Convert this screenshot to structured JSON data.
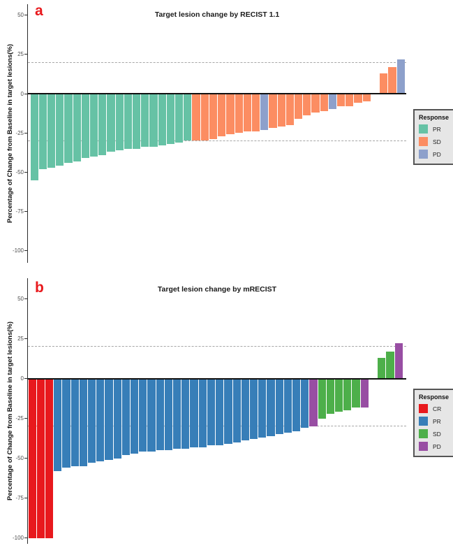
{
  "styles": {
    "panel_label_color": "#E8191D",
    "zero_line_color": "#111111",
    "dashed_line_color": "#A6A6A6",
    "axis_color": "#2B2B2B",
    "tick_label_color": "#4D4D4D",
    "legend_bg": "#E6E6E6",
    "legend_border": "#555555"
  },
  "chart_data": [
    {
      "type": "bar",
      "panel_label": "a",
      "title": "Target lesion change by RECIST 1.1",
      "ylabel": "Percentage of Change from Baseline in target lesions(%)",
      "ylim": [
        -107,
        57
      ],
      "yticks": [
        50,
        25,
        0,
        -25,
        -50,
        -75,
        -100
      ],
      "dashed_thresholds": [
        20,
        -30
      ],
      "grid": false,
      "legend": {
        "position": "right",
        "title": "Response",
        "items": [
          {
            "label": "PR",
            "color": "#66C2A5"
          },
          {
            "label": "SD",
            "color": "#FC8D62"
          },
          {
            "label": "PD",
            "color": "#8DA0CB"
          }
        ]
      },
      "colors": {
        "PR": "#66C2A5",
        "SD": "#FC8D62",
        "PD": "#8DA0CB"
      },
      "bars": [
        {
          "value": -55,
          "response": "PR"
        },
        {
          "value": -48,
          "response": "PR"
        },
        {
          "value": -47,
          "response": "PR"
        },
        {
          "value": -46,
          "response": "PR"
        },
        {
          "value": -44,
          "response": "PR"
        },
        {
          "value": -43,
          "response": "PR"
        },
        {
          "value": -41,
          "response": "PR"
        },
        {
          "value": -40,
          "response": "PR"
        },
        {
          "value": -39,
          "response": "PR"
        },
        {
          "value": -37,
          "response": "PR"
        },
        {
          "value": -36,
          "response": "PR"
        },
        {
          "value": -35,
          "response": "PR"
        },
        {
          "value": -35,
          "response": "PR"
        },
        {
          "value": -34,
          "response": "PR"
        },
        {
          "value": -34,
          "response": "PR"
        },
        {
          "value": -33,
          "response": "PR"
        },
        {
          "value": -32,
          "response": "PR"
        },
        {
          "value": -31,
          "response": "PR"
        },
        {
          "value": -30,
          "response": "PR"
        },
        {
          "value": -30,
          "response": "SD"
        },
        {
          "value": -30,
          "response": "SD"
        },
        {
          "value": -29,
          "response": "SD"
        },
        {
          "value": -27,
          "response": "SD"
        },
        {
          "value": -26,
          "response": "SD"
        },
        {
          "value": -25,
          "response": "SD"
        },
        {
          "value": -24,
          "response": "SD"
        },
        {
          "value": -24,
          "response": "SD"
        },
        {
          "value": -23,
          "response": "PD"
        },
        {
          "value": -22,
          "response": "SD"
        },
        {
          "value": -21,
          "response": "SD"
        },
        {
          "value": -20,
          "response": "SD"
        },
        {
          "value": -16,
          "response": "SD"
        },
        {
          "value": -14,
          "response": "SD"
        },
        {
          "value": -12,
          "response": "SD"
        },
        {
          "value": -11,
          "response": "SD"
        },
        {
          "value": -10,
          "response": "PD"
        },
        {
          "value": -8,
          "response": "SD"
        },
        {
          "value": -8,
          "response": "SD"
        },
        {
          "value": -6,
          "response": "SD"
        },
        {
          "value": -5,
          "response": "SD"
        },
        {
          "value": 0,
          "response": "SD"
        },
        {
          "value": 13,
          "response": "SD"
        },
        {
          "value": 17,
          "response": "SD"
        },
        {
          "value": 22,
          "response": "PD"
        }
      ]
    },
    {
      "type": "bar",
      "panel_label": "b",
      "title": "Target lesion change by mRECIST",
      "ylabel": "Percentage of Change from Baseline in target lesions(%)",
      "ylim": [
        -107,
        57
      ],
      "yticks": [
        50,
        25,
        0,
        -25,
        -50,
        -75,
        -100
      ],
      "dashed_thresholds": [
        20,
        -30
      ],
      "grid": false,
      "legend": {
        "position": "right",
        "title": "Response",
        "items": [
          {
            "label": "CR",
            "color": "#E8191D"
          },
          {
            "label": "PR",
            "color": "#377EB8"
          },
          {
            "label": "SD",
            "color": "#4DAF4A"
          },
          {
            "label": "PD",
            "color": "#984EA3"
          }
        ]
      },
      "colors": {
        "CR": "#E8191D",
        "PR": "#377EB8",
        "SD": "#4DAF4A",
        "PD": "#984EA3"
      },
      "bars": [
        {
          "value": -100,
          "response": "CR"
        },
        {
          "value": -100,
          "response": "CR"
        },
        {
          "value": -100,
          "response": "CR"
        },
        {
          "value": -58,
          "response": "PR"
        },
        {
          "value": -56,
          "response": "PR"
        },
        {
          "value": -55,
          "response": "PR"
        },
        {
          "value": -55,
          "response": "PR"
        },
        {
          "value": -53,
          "response": "PR"
        },
        {
          "value": -52,
          "response": "PR"
        },
        {
          "value": -51,
          "response": "PR"
        },
        {
          "value": -50,
          "response": "PR"
        },
        {
          "value": -48,
          "response": "PR"
        },
        {
          "value": -47,
          "response": "PR"
        },
        {
          "value": -46,
          "response": "PR"
        },
        {
          "value": -46,
          "response": "PR"
        },
        {
          "value": -45,
          "response": "PR"
        },
        {
          "value": -45,
          "response": "PR"
        },
        {
          "value": -44,
          "response": "PR"
        },
        {
          "value": -44,
          "response": "PR"
        },
        {
          "value": -43,
          "response": "PR"
        },
        {
          "value": -43,
          "response": "PR"
        },
        {
          "value": -42,
          "response": "PR"
        },
        {
          "value": -42,
          "response": "PR"
        },
        {
          "value": -41,
          "response": "PR"
        },
        {
          "value": -40,
          "response": "PR"
        },
        {
          "value": -39,
          "response": "PR"
        },
        {
          "value": -38,
          "response": "PR"
        },
        {
          "value": -37,
          "response": "PR"
        },
        {
          "value": -36,
          "response": "PR"
        },
        {
          "value": -35,
          "response": "PR"
        },
        {
          "value": -34,
          "response": "PR"
        },
        {
          "value": -33,
          "response": "PR"
        },
        {
          "value": -31,
          "response": "PR"
        },
        {
          "value": -30,
          "response": "PD"
        },
        {
          "value": -25,
          "response": "SD"
        },
        {
          "value": -22,
          "response": "SD"
        },
        {
          "value": -21,
          "response": "SD"
        },
        {
          "value": -20,
          "response": "SD"
        },
        {
          "value": -18,
          "response": "SD"
        },
        {
          "value": -18,
          "response": "PD"
        },
        {
          "value": 0,
          "response": "SD"
        },
        {
          "value": 13,
          "response": "SD"
        },
        {
          "value": 17,
          "response": "SD"
        },
        {
          "value": 22,
          "response": "PD"
        }
      ]
    }
  ]
}
